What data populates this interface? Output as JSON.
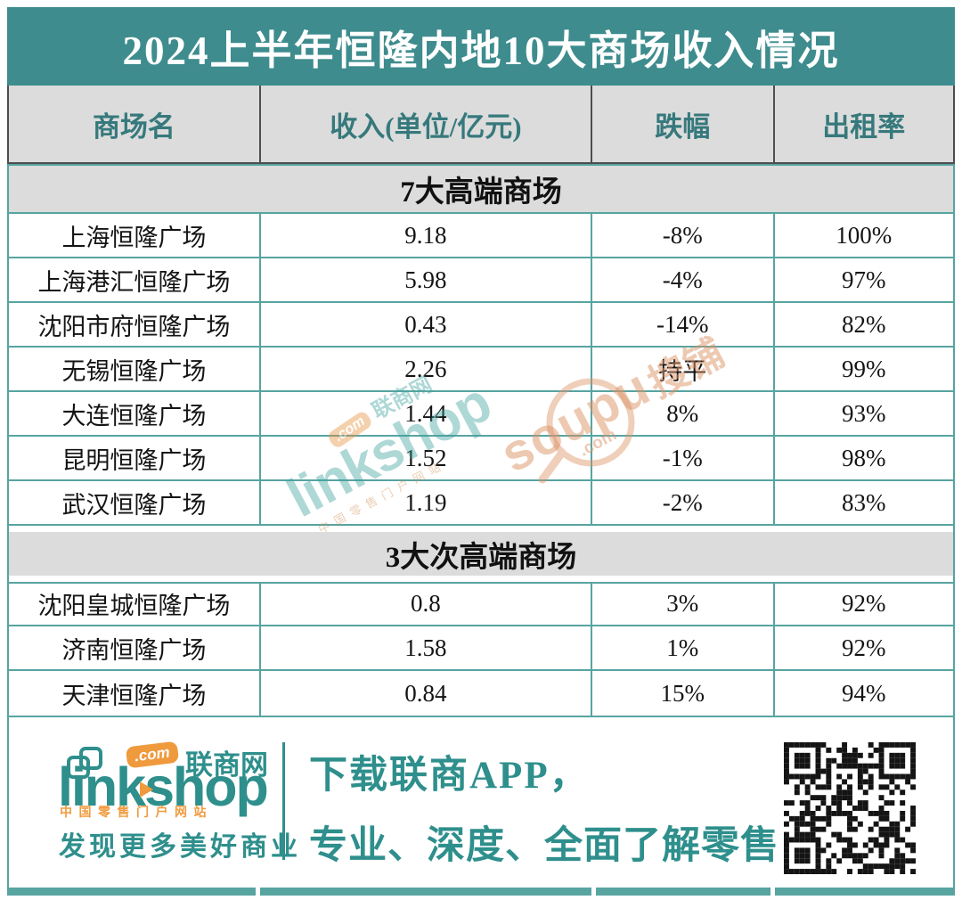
{
  "title": "2024上半年恒隆内地10大商场收入情况",
  "table": {
    "columns": [
      "商场名",
      "收入(单位/亿元)",
      "跌幅",
      "出租率"
    ],
    "sections": [
      {
        "label": "7大高端商场",
        "rows": [
          {
            "name": "上海恒隆广场",
            "revenue": "9.18",
            "change": "-8%",
            "occupancy": "100%"
          },
          {
            "name": "上海港汇恒隆广场",
            "revenue": "5.98",
            "change": "-4%",
            "occupancy": "97%"
          },
          {
            "name": "沈阳市府恒隆广场",
            "revenue": "0.43",
            "change": "-14%",
            "occupancy": "82%"
          },
          {
            "name": "无锡恒隆广场",
            "revenue": "2.26",
            "change": "持平",
            "occupancy": "99%"
          },
          {
            "name": "大连恒隆广场",
            "revenue": "1.44",
            "change": "8%",
            "occupancy": "93%"
          },
          {
            "name": "昆明恒隆广场",
            "revenue": "1.52",
            "change": "-1%",
            "occupancy": "98%"
          },
          {
            "name": "武汉恒隆广场",
            "revenue": "1.19",
            "change": "-2%",
            "occupancy": "83%"
          }
        ]
      },
      {
        "label": "3大次高端商场",
        "rows": [
          {
            "name": "沈阳皇城恒隆广场",
            "revenue": "0.8",
            "change": "3%",
            "occupancy": "92%"
          },
          {
            "name": "济南恒隆广场",
            "revenue": "1.58",
            "change": "1%",
            "occupancy": "92%"
          },
          {
            "name": "天津恒隆广场",
            "revenue": "0.84",
            "change": "15%",
            "occupancy": "94%"
          }
        ]
      }
    ]
  },
  "chart_data": {
    "type": "table",
    "title": "2024上半年恒隆内地10大商场收入情况",
    "columns": [
      "商场名",
      "收入(单位/亿元)",
      "跌幅",
      "出租率"
    ],
    "groups": [
      {
        "group": "7大高端商场",
        "rows": [
          [
            "上海恒隆广场",
            9.18,
            "-8%",
            "100%"
          ],
          [
            "上海港汇恒隆广场",
            5.98,
            "-4%",
            "97%"
          ],
          [
            "沈阳市府恒隆广场",
            0.43,
            "-14%",
            "82%"
          ],
          [
            "无锡恒隆广场",
            2.26,
            "持平",
            "99%"
          ],
          [
            "大连恒隆广场",
            1.44,
            "8%",
            "93%"
          ],
          [
            "昆明恒隆广场",
            1.52,
            "-1%",
            "98%"
          ],
          [
            "武汉恒隆广场",
            1.19,
            "-2%",
            "83%"
          ]
        ]
      },
      {
        "group": "3大次高端商场",
        "rows": [
          [
            "沈阳皇城恒隆广场",
            0.8,
            "3%",
            "92%"
          ],
          [
            "济南恒隆广场",
            1.58,
            "1%",
            "92%"
          ],
          [
            "天津恒隆广场",
            0.84,
            "15%",
            "94%"
          ]
        ]
      }
    ]
  },
  "watermarks": {
    "linkshop": {
      "com": ".com",
      "cn": "联商网",
      "brand": "linkshop",
      "sub": "中国零售门户网站"
    },
    "soupu": {
      "brand": "soupu",
      "cn": "搜铺",
      "com": ".com"
    }
  },
  "footer": {
    "logo": {
      "com_badge": ".com",
      "brand_cn": "联商网",
      "brand": "linkshop",
      "subtitle": "中国零售门户网站",
      "slogan": "发现更多美好商业"
    },
    "promo_line1": "下载联商APP，",
    "promo_line2": "专业、深度、全面了解零售"
  },
  "colors": {
    "title_bg": "#3e8c8e",
    "table_border": "#57a4a1",
    "header_bg": "#dcdcdc",
    "header_text": "#36797c",
    "footer_teal": "#2e8f8c",
    "brand_orange": "#f09a3e"
  }
}
